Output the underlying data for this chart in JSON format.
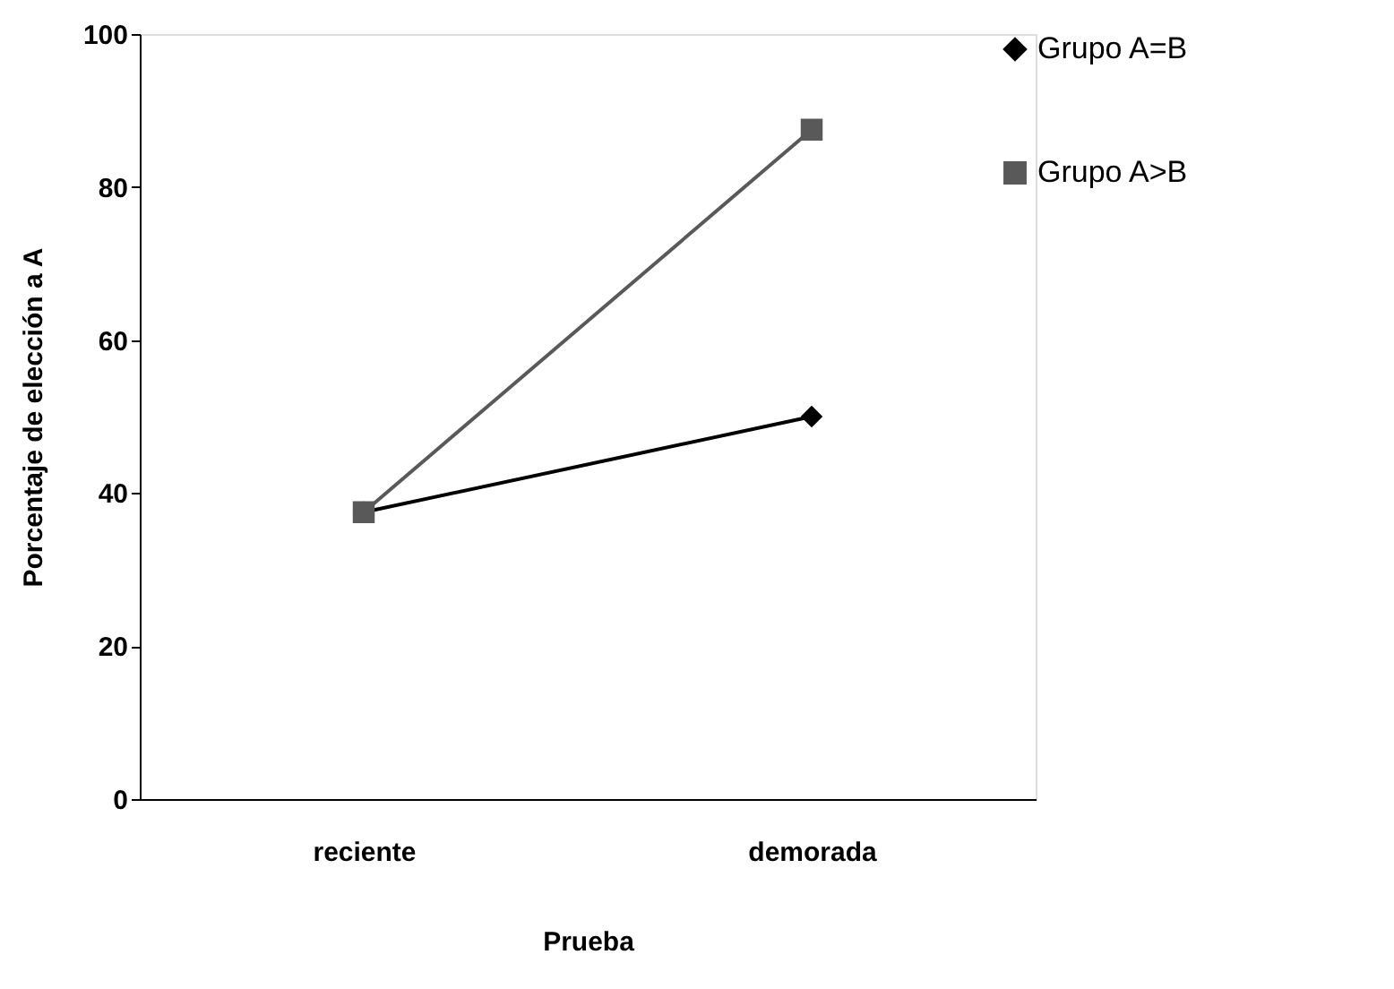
{
  "chart_data": {
    "type": "line",
    "xlabel": "Prueba",
    "ylabel": "Porcentaje de elección a A",
    "categories": [
      "reciente",
      "demorada"
    ],
    "series": [
      {
        "name": "Grupo A=B",
        "color": "#000000",
        "marker": "diamond",
        "values": [
          37.5,
          50
        ]
      },
      {
        "name": "Grupo A>B",
        "color": "#595959",
        "marker": "square",
        "values": [
          37.5,
          87.5
        ]
      }
    ],
    "ylim": [
      0,
      100
    ],
    "yticks": [
      0,
      20,
      40,
      60,
      80,
      100
    ],
    "grid": false,
    "legend": "right",
    "line_style": "solid"
  }
}
